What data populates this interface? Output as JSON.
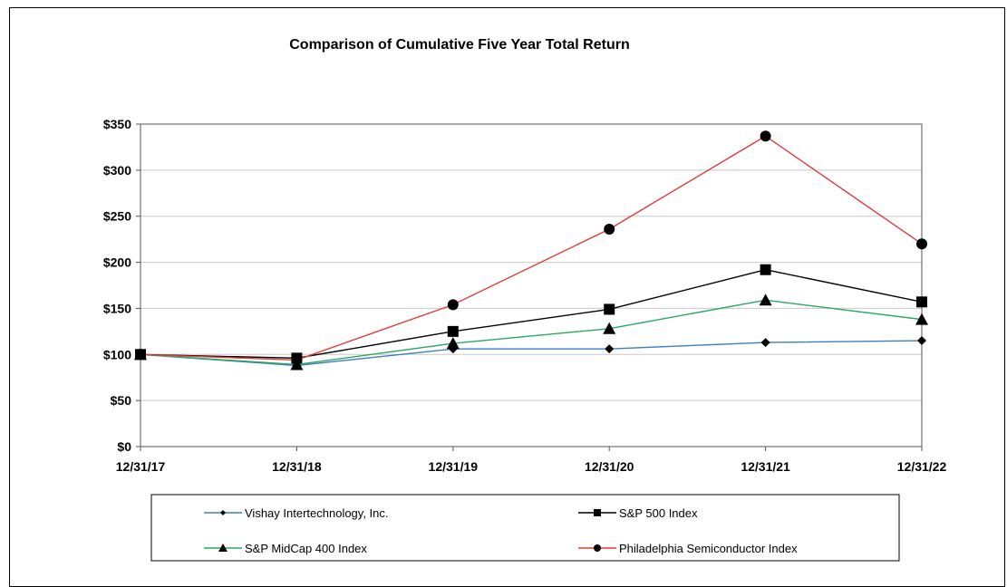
{
  "chart_data": {
    "type": "line",
    "title": "Comparison of Cumulative Five Year Total Return",
    "xlabel": "",
    "ylabel": "",
    "categories": [
      "12/31/17",
      "12/31/18",
      "12/31/19",
      "12/31/20",
      "12/31/21",
      "12/31/22"
    ],
    "yticks": [
      "$0",
      "$50",
      "$100",
      "$150",
      "$200",
      "$250",
      "$300",
      "$350"
    ],
    "ylim": [
      0,
      350
    ],
    "grid": true,
    "legend_position": "bottom",
    "series": [
      {
        "name": "Vishay Intertechnology, Inc.",
        "color": "#3d7fc1",
        "marker": "diamond",
        "values": [
          100,
          88,
          106,
          106,
          113,
          115
        ]
      },
      {
        "name": "S&P 500 Index",
        "color": "#000000",
        "marker": "square",
        "values": [
          100,
          96,
          125,
          149,
          192,
          157
        ]
      },
      {
        "name": "S&P MidCap 400 Index",
        "color": "#2aa860",
        "marker": "triangle",
        "values": [
          100,
          89,
          112,
          128,
          159,
          138
        ]
      },
      {
        "name": "Philadelphia Semiconductor Index",
        "color": "#e03c3c",
        "marker": "circle",
        "values": [
          100,
          94,
          154,
          236,
          337,
          220
        ]
      }
    ]
  }
}
